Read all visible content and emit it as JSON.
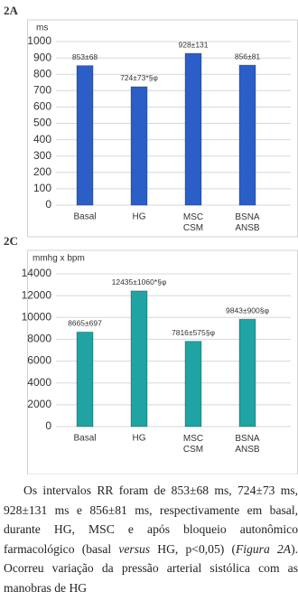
{
  "chart_data": [
    {
      "type": "bar",
      "title": "2A",
      "y_label": "ms",
      "categories": [
        "Basal",
        "HG",
        "MSC\nCSM",
        "BSNA\nANSB"
      ],
      "values": [
        853,
        724,
        928,
        856
      ],
      "value_labels": [
        "853±68",
        "724±73*§φ",
        "928±131",
        "856±81"
      ],
      "color": "#2b5fc7",
      "ylim": [
        0,
        1000
      ],
      "yticks": [
        0,
        100,
        200,
        300,
        400,
        500,
        600,
        700,
        800,
        900,
        1000
      ],
      "grid": true
    },
    {
      "type": "bar",
      "title": "2C",
      "y_label": "mmhg x bpm",
      "categories": [
        "Basal",
        "HG",
        "MSC\nCSM",
        "BSNA\nANSB"
      ],
      "values": [
        8665,
        12435,
        7816,
        9843
      ],
      "value_labels": [
        "8665±697",
        "12435±1060*§φ",
        "7816±575§φ",
        "9843±900§φ"
      ],
      "color": "#1fa3a3",
      "ylim": [
        0,
        14000
      ],
      "yticks": [
        0,
        2000,
        4000,
        6000,
        8000,
        10000,
        12000,
        14000
      ],
      "grid": true
    }
  ],
  "paragraph": [
    {
      "text": "Os intervalos RR foram de 853±68 ms, 724±73 ms, 928±131 ms e 856±81 ms, respectivamente em basal, durante HG, MSC e após bloqueio autonômico farmacológico (basal ",
      "italic": false
    },
    {
      "text": "versus",
      "italic": true
    },
    {
      "text": " HG, p<0,05) (",
      "italic": false
    },
    {
      "text": "Figura 2A",
      "italic": true
    },
    {
      "text": "). Ocorreu variação da pressão arterial sistólica com as manobras de HG",
      "italic": false
    }
  ]
}
